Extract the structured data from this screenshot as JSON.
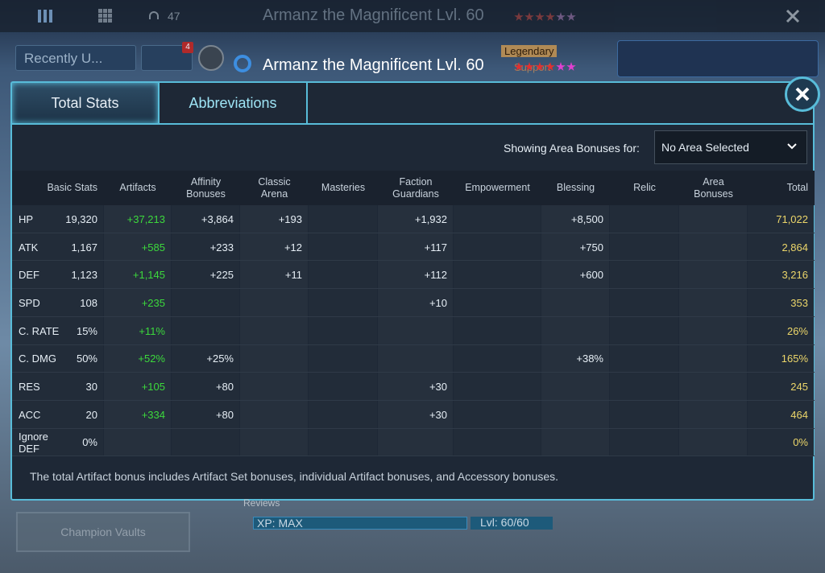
{
  "top_bar": {
    "counter": "47",
    "title": "Armanz the Magnificent Lvl. 60"
  },
  "header": {
    "filter": "Recently U...",
    "filter_badge": "4",
    "hero_name": "Armanz the Magnificent Lvl. 60",
    "rarity": "Legendary",
    "role": "Support"
  },
  "tabs": [
    "Total Stats",
    "Abbreviations"
  ],
  "area": {
    "label": "Showing Area Bonuses for:",
    "selected": "No Area Selected"
  },
  "table": {
    "columns": [
      "Basic Stats",
      "Artifacts",
      "Affinity Bonuses",
      "Classic Arena",
      "Masteries",
      "Faction Guardians",
      "Empowerment",
      "Blessing",
      "Relic",
      "Area Bonuses",
      "Total"
    ],
    "rows": [
      [
        "HP",
        "19,320",
        "+37,213",
        "+3,864",
        "+193",
        null,
        "+1,932",
        null,
        "+8,500",
        null,
        null,
        "71,022"
      ],
      [
        "ATK",
        "1,167",
        "+585",
        "+233",
        "+12",
        null,
        "+117",
        null,
        "+750",
        null,
        null,
        "2,864"
      ],
      [
        "DEF",
        "1,123",
        "+1,145",
        "+225",
        "+11",
        null,
        "+112",
        null,
        "+600",
        null,
        null,
        "3,216"
      ],
      [
        "SPD",
        "108",
        "+235",
        null,
        null,
        null,
        "+10",
        null,
        null,
        null,
        null,
        "353"
      ],
      [
        "C. RATE",
        "15%",
        "+11%",
        null,
        null,
        null,
        null,
        null,
        null,
        null,
        null,
        "26%"
      ],
      [
        "C. DMG",
        "50%",
        "+52%",
        "+25%",
        null,
        null,
        null,
        null,
        "+38%",
        null,
        null,
        "165%"
      ],
      [
        "RES",
        "30",
        "+105",
        "+80",
        null,
        null,
        "+30",
        null,
        null,
        null,
        null,
        "245"
      ],
      [
        "ACC",
        "20",
        "+334",
        "+80",
        null,
        null,
        "+30",
        null,
        null,
        null,
        null,
        "464"
      ],
      [
        "Ignore DEF",
        "0%",
        null,
        null,
        null,
        null,
        null,
        null,
        null,
        null,
        null,
        "0%"
      ]
    ]
  },
  "footnote": "The total Artifact bonus includes Artifact Set bonuses, individual Artifact bonuses, and Accessory bonuses.",
  "bottom": {
    "button": "Champion Vaults",
    "reviews": "Reviews",
    "xp": "XP: MAX",
    "level": "Lvl: 60/60"
  }
}
